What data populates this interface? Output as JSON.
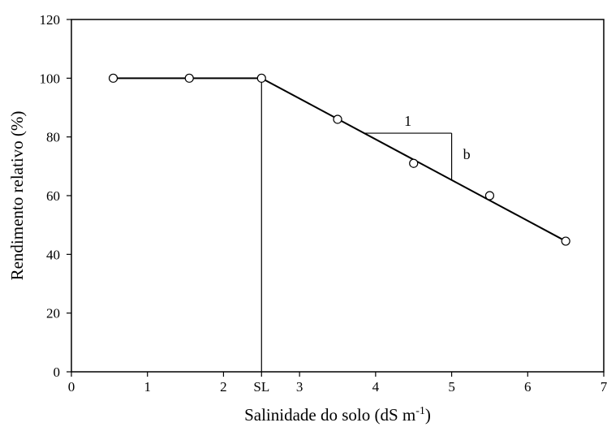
{
  "chart_data": {
    "type": "scatter",
    "xlabel": "Salinidade do solo (dS m",
    "xlabel_superscript": "-1",
    "xlabel_suffix": ")",
    "ylabel": "Rendimento relativo (%)",
    "xlim": [
      0,
      7
    ],
    "ylim": [
      0,
      120
    ],
    "x_ticks": [
      "0",
      "1",
      "2",
      "SL",
      "3",
      "4",
      "5",
      "6",
      "7"
    ],
    "x_tick_values": [
      0,
      1,
      2,
      2.5,
      3,
      4,
      5,
      6,
      7
    ],
    "y_ticks": [
      "0",
      "20",
      "40",
      "60",
      "80",
      "100",
      "120"
    ],
    "y_tick_values": [
      0,
      20,
      40,
      60,
      80,
      100,
      120
    ],
    "grid": false,
    "series": [
      {
        "points": [
          {
            "x": 0.55,
            "y": 100
          },
          {
            "x": 1.55,
            "y": 100
          },
          {
            "x": 2.5,
            "y": 100
          },
          {
            "x": 3.5,
            "y": 86
          },
          {
            "x": 4.5,
            "y": 71
          },
          {
            "x": 5.5,
            "y": 60
          },
          {
            "x": 6.5,
            "y": 44.5
          }
        ]
      }
    ],
    "fit_line": [
      {
        "x": 0.55,
        "y": 100
      },
      {
        "x": 2.5,
        "y": 100
      },
      {
        "x": 6.5,
        "y": 44.5
      }
    ],
    "threshold_marker": {
      "x": 2.5,
      "label": "SL"
    },
    "slope_annotation": {
      "run_label": "1",
      "rise_label": "b",
      "x_start": 3.85,
      "x_end": 5.0
    }
  }
}
